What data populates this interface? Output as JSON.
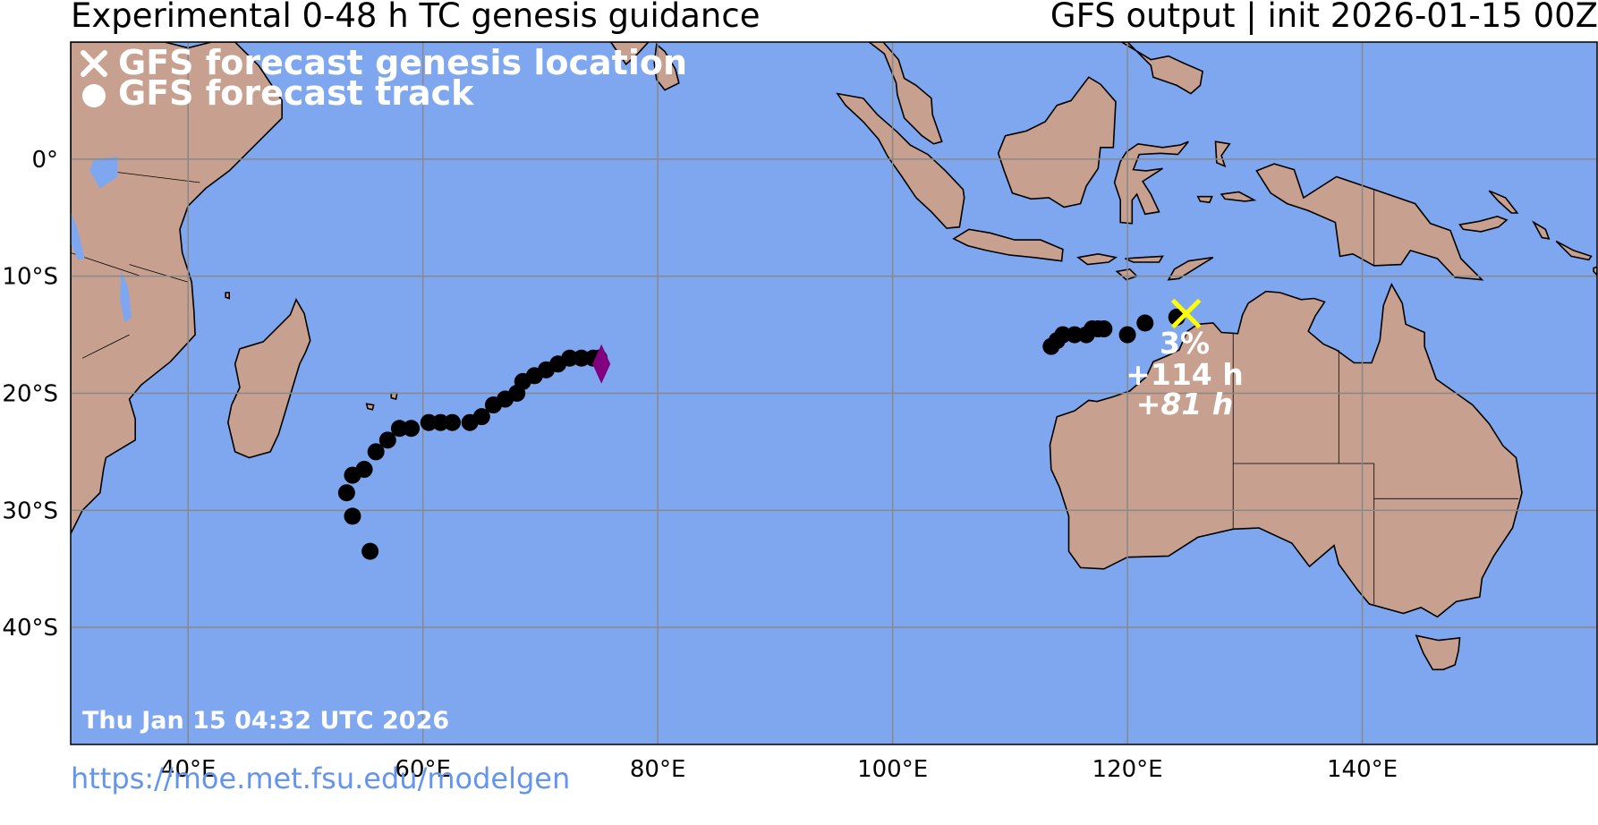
{
  "header": {
    "title_left": "Experimental 0-48 h TC genesis guidance",
    "title_right": "GFS output | init 2026-01-15 00Z"
  },
  "legend": {
    "items": [
      {
        "symbol": "x-icon",
        "label": "GFS forecast genesis location"
      },
      {
        "symbol": "dot-icon",
        "label": "GFS forecast track"
      }
    ]
  },
  "map": {
    "extent": {
      "lon_min": 30,
      "lon_max": 160,
      "lat_min": -50,
      "lat_max": 10
    },
    "colors": {
      "ocean": "#7FA7F0",
      "land": "#C8A08F",
      "grid": "#888888",
      "track": "#000000",
      "genesis_marker": "#FFFF00",
      "end_marker": "#800080",
      "lakes": "#7FA7F0"
    },
    "x_ticks": [
      {
        "lon": 40,
        "label": "40°E"
      },
      {
        "lon": 60,
        "label": "60°E"
      },
      {
        "lon": 80,
        "label": "80°E"
      },
      {
        "lon": 100,
        "label": "100°E"
      },
      {
        "lon": 120,
        "label": "120°E"
      },
      {
        "lon": 140,
        "label": "140°E"
      }
    ],
    "y_ticks": [
      {
        "lat": 0,
        "label": "0°"
      },
      {
        "lat": -10,
        "label": "10°S"
      },
      {
        "lat": -20,
        "label": "20°S"
      },
      {
        "lat": -30,
        "label": "30°S"
      },
      {
        "lat": -40,
        "label": "40°S"
      }
    ],
    "tracks": [
      {
        "name": "indian-ocean-track",
        "points": [
          [
            53.5,
            -28.5
          ],
          [
            54,
            -27
          ],
          [
            55,
            -26.5
          ],
          [
            56,
            -25
          ],
          [
            57,
            -24
          ],
          [
            58,
            -23
          ],
          [
            59,
            -23
          ],
          [
            60.5,
            -22.5
          ],
          [
            61.5,
            -22.5
          ],
          [
            62.5,
            -22.5
          ],
          [
            64,
            -22.5
          ],
          [
            65,
            -22
          ],
          [
            66,
            -21
          ],
          [
            67,
            -20.5
          ],
          [
            68,
            -20
          ],
          [
            68.5,
            -19
          ],
          [
            69.5,
            -18.5
          ],
          [
            70.5,
            -18
          ],
          [
            71.5,
            -17.5
          ],
          [
            72.5,
            -17
          ],
          [
            73.5,
            -17
          ],
          [
            74.5,
            -17
          ],
          [
            75,
            -17
          ]
        ],
        "extra_points": [
          [
            54,
            -30.5
          ],
          [
            55.5,
            -33.5
          ]
        ],
        "end_marker": [
          75.2,
          -17.5
        ]
      },
      {
        "name": "australia-track",
        "points": [
          [
            113.5,
            -16
          ],
          [
            114,
            -15.5
          ],
          [
            114.5,
            -15
          ],
          [
            115.5,
            -15
          ],
          [
            116.5,
            -15
          ],
          [
            117,
            -14.5
          ],
          [
            117.5,
            -14.5
          ],
          [
            118,
            -14.5
          ],
          [
            120,
            -15
          ],
          [
            121.5,
            -14
          ],
          [
            124.2,
            -13.5
          ]
        ],
        "genesis": {
          "lon": 125,
          "lat": -13.2,
          "probability": "3%",
          "lead_time": "+114 h",
          "lead_time_italic": "81 h",
          "lead_prefix": "+"
        }
      }
    ],
    "timestamp": "Thu Jan 15 04:32 UTC 2026"
  },
  "footer": {
    "link": "https://moe.met.fsu.edu/modelgen"
  }
}
